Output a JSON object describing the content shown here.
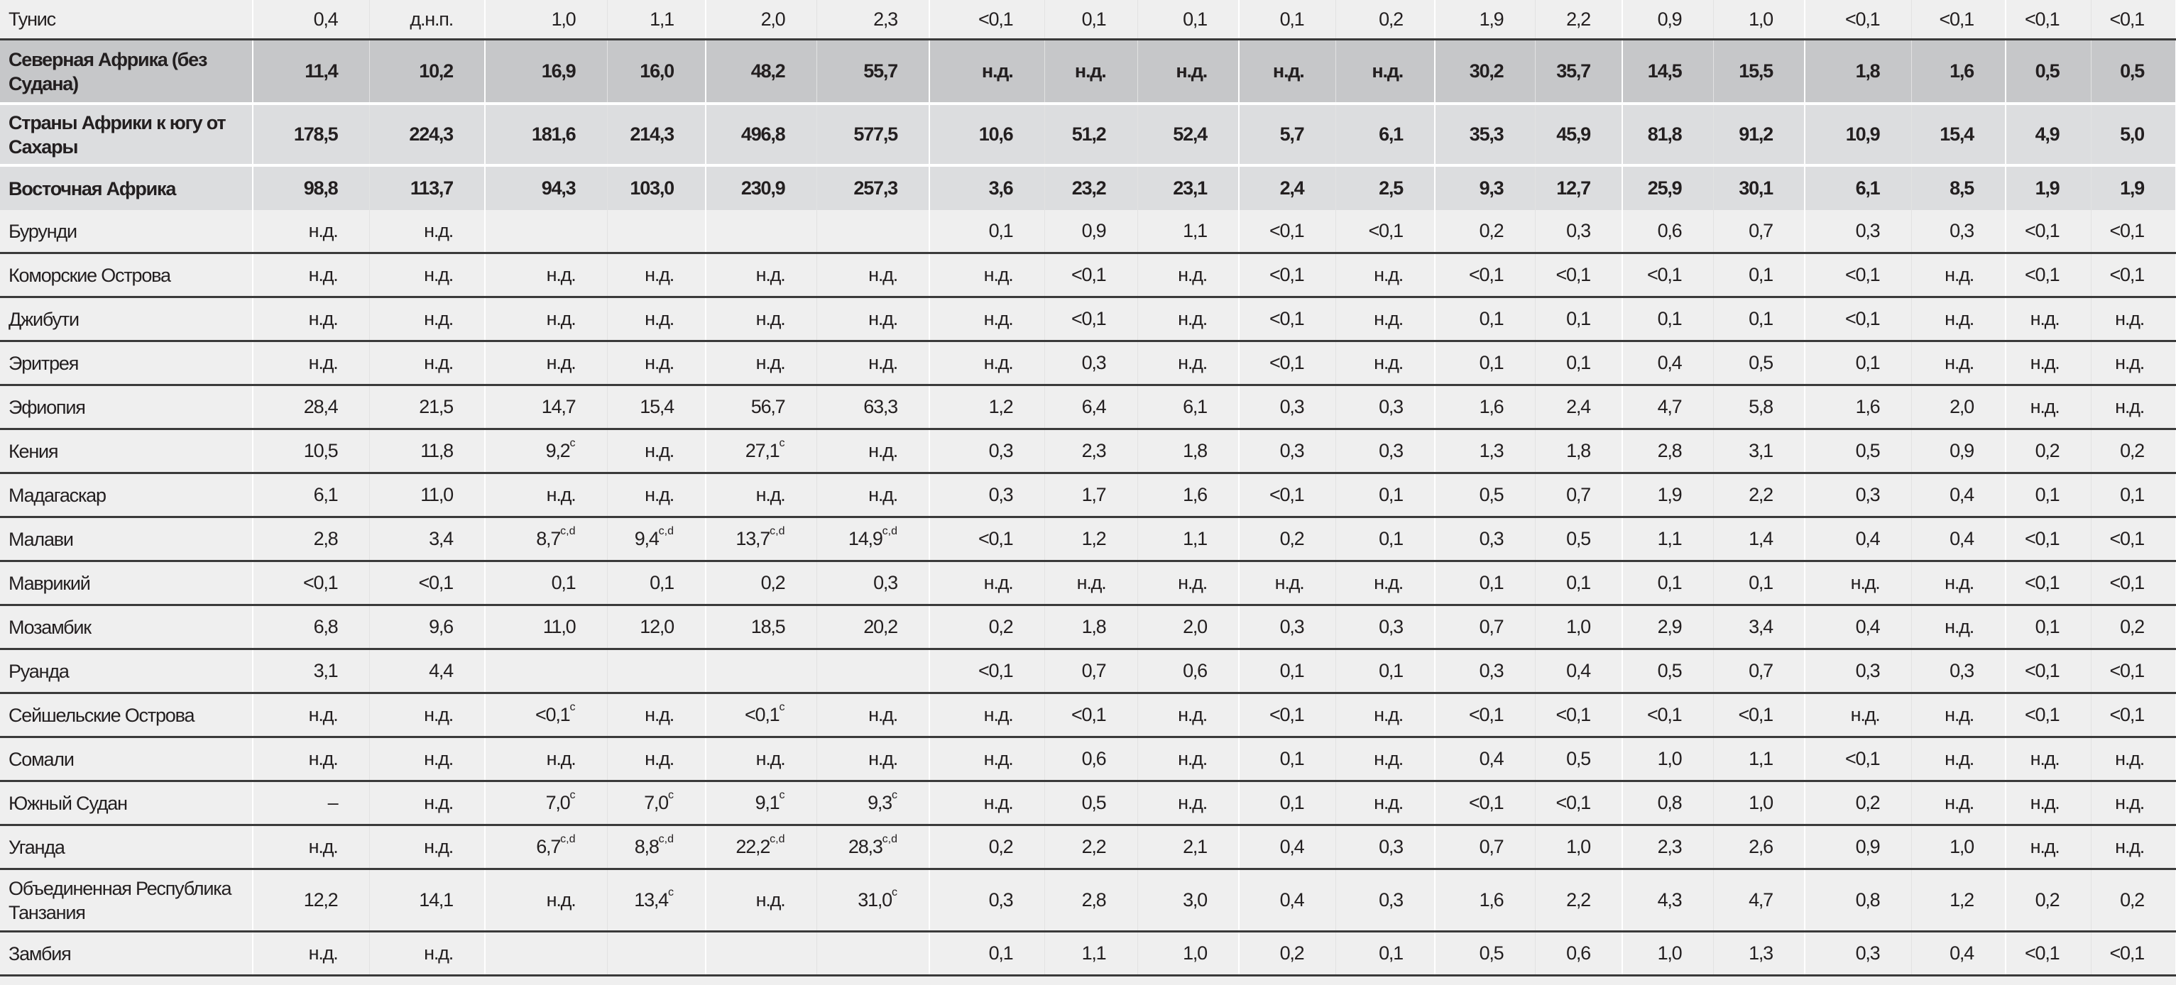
{
  "table": {
    "rows": [
      {
        "label": "Тунис",
        "style": "reg top",
        "cells": [
          "0,4",
          "д.н.п.",
          "1,0",
          "1,1",
          "2,0",
          "2,3",
          "<0,1",
          "0,1",
          "0,1",
          "0,1",
          "0,2",
          "1,9",
          "2,2",
          "0,9",
          "1,0",
          "<0,1",
          "<0,1",
          "<0,1",
          "<0,1"
        ]
      },
      {
        "label": "Северная Африка (без Судана)",
        "style": "agg1",
        "cells": [
          "11,4",
          "10,2",
          "16,9",
          "16,0",
          "48,2",
          "55,7",
          "н.д.",
          "н.д.",
          "н.д.",
          "н.д.",
          "н.д.",
          "30,2",
          "35,7",
          "14,5",
          "15,5",
          "1,8",
          "1,6",
          "0,5",
          "0,5"
        ]
      },
      {
        "label": "Страны Африки к югу от Сахары",
        "style": "agg2",
        "cells": [
          "178,5",
          "224,3",
          "181,6",
          "214,3",
          "496,8",
          "577,5",
          "10,6",
          "51,2",
          "52,4",
          "5,7",
          "6,1",
          "35,3",
          "45,9",
          "81,8",
          "91,2",
          "10,9",
          "15,4",
          "4,9",
          "5,0"
        ]
      },
      {
        "label": "Восточная Африка",
        "style": "agg3",
        "cells": [
          "98,8",
          "113,7",
          "94,3",
          "103,0",
          "230,9",
          "257,3",
          "3,6",
          "23,2",
          "23,1",
          "2,4",
          "2,5",
          "9,3",
          "12,7",
          "25,9",
          "30,1",
          "6,1",
          "8,5",
          "1,9",
          "1,9"
        ]
      },
      {
        "label": "Бурунди",
        "style": "reg",
        "cells": [
          "н.д.",
          "н.д.",
          "",
          "",
          "",
          "",
          "0,1",
          "0,9",
          "1,1",
          "<0,1",
          "<0,1",
          "0,2",
          "0,3",
          "0,6",
          "0,7",
          "0,3",
          "0,3",
          "<0,1",
          "<0,1"
        ]
      },
      {
        "label": "Коморские Острова",
        "style": "reg",
        "cells": [
          "н.д.",
          "н.д.",
          "н.д.",
          "н.д.",
          "н.д.",
          "н.д.",
          "н.д.",
          "<0,1",
          "н.д.",
          "<0,1",
          "н.д.",
          "<0,1",
          "<0,1",
          "<0,1",
          "0,1",
          "<0,1",
          "н.д.",
          "<0,1",
          "<0,1"
        ]
      },
      {
        "label": "Джибути",
        "style": "reg",
        "cells": [
          "н.д.",
          "н.д.",
          "н.д.",
          "н.д.",
          "н.д.",
          "н.д.",
          "н.д.",
          "<0,1",
          "н.д.",
          "<0,1",
          "н.д.",
          "0,1",
          "0,1",
          "0,1",
          "0,1",
          "<0,1",
          "н.д.",
          "н.д.",
          "н.д."
        ]
      },
      {
        "label": "Эритрея",
        "style": "reg",
        "cells": [
          "н.д.",
          "н.д.",
          "н.д.",
          "н.д.",
          "н.д.",
          "н.д.",
          "н.д.",
          "0,3",
          "н.д.",
          "<0,1",
          "н.д.",
          "0,1",
          "0,1",
          "0,4",
          "0,5",
          "0,1",
          "н.д.",
          "н.д.",
          "н.д."
        ]
      },
      {
        "label": "Эфиопия",
        "style": "reg",
        "cells": [
          "28,4",
          "21,5",
          "14,7",
          "15,4",
          "56,7",
          "63,3",
          "1,2",
          "6,4",
          "6,1",
          "0,3",
          "0,3",
          "1,6",
          "2,4",
          "4,7",
          "5,8",
          "1,6",
          "2,0",
          "н.д.",
          "н.д."
        ]
      },
      {
        "label": "Кения",
        "style": "reg",
        "cells": [
          "10,5",
          "11,8",
          "9,2^c",
          "н.д.",
          "27,1^c",
          "н.д.",
          "0,3",
          "2,3",
          "1,8",
          "0,3",
          "0,3",
          "1,3",
          "1,8",
          "2,8",
          "3,1",
          "0,5",
          "0,9",
          "0,2",
          "0,2"
        ]
      },
      {
        "label": "Мадагаскар",
        "style": "reg",
        "cells": [
          "6,1",
          "11,0",
          "н.д.",
          "н.д.",
          "н.д.",
          "н.д.",
          "0,3",
          "1,7",
          "1,6",
          "<0,1",
          "0,1",
          "0,5",
          "0,7",
          "1,9",
          "2,2",
          "0,3",
          "0,4",
          "0,1",
          "0,1"
        ]
      },
      {
        "label": "Малави",
        "style": "reg",
        "cells": [
          "2,8",
          "3,4",
          "8,7^c,d",
          "9,4^c,d",
          "13,7^c,d",
          "14,9^c,d",
          "<0,1",
          "1,2",
          "1,1",
          "0,2",
          "0,1",
          "0,3",
          "0,5",
          "1,1",
          "1,4",
          "0,4",
          "0,4",
          "<0,1",
          "<0,1"
        ]
      },
      {
        "label": "Маврикий",
        "style": "reg",
        "cells": [
          "<0,1",
          "<0,1",
          "0,1",
          "0,1",
          "0,2",
          "0,3",
          "н.д.",
          "н.д.",
          "н.д.",
          "н.д.",
          "н.д.",
          "0,1",
          "0,1",
          "0,1",
          "0,1",
          "н.д.",
          "н.д.",
          "<0,1",
          "<0,1"
        ]
      },
      {
        "label": "Мозамбик",
        "style": "reg",
        "cells": [
          "6,8",
          "9,6",
          "11,0",
          "12,0",
          "18,5",
          "20,2",
          "0,2",
          "1,8",
          "2,0",
          "0,3",
          "0,3",
          "0,7",
          "1,0",
          "2,9",
          "3,4",
          "0,4",
          "н.д.",
          "0,1",
          "0,2"
        ]
      },
      {
        "label": "Руанда",
        "style": "reg",
        "cells": [
          "3,1",
          "4,4",
          "",
          "",
          "",
          "",
          "<0,1",
          "0,7",
          "0,6",
          "0,1",
          "0,1",
          "0,3",
          "0,4",
          "0,5",
          "0,7",
          "0,3",
          "0,3",
          "<0,1",
          "<0,1"
        ]
      },
      {
        "label": "Сейшельские Острова",
        "style": "reg",
        "cells": [
          "н.д.",
          "н.д.",
          "<0,1^c",
          "н.д.",
          "<0,1^c",
          "н.д.",
          "н.д.",
          "<0,1",
          "н.д.",
          "<0,1",
          "н.д.",
          "<0,1",
          "<0,1",
          "<0,1",
          "<0,1",
          "н.д.",
          "н.д.",
          "<0,1",
          "<0,1"
        ]
      },
      {
        "label": "Сомали",
        "style": "reg",
        "cells": [
          "н.д.",
          "н.д.",
          "н.д.",
          "н.д.",
          "н.д.",
          "н.д.",
          "н.д.",
          "0,6",
          "н.д.",
          "0,1",
          "н.д.",
          "0,4",
          "0,5",
          "1,0",
          "1,1",
          "<0,1",
          "н.д.",
          "н.д.",
          "н.д."
        ]
      },
      {
        "label": "Южный Судан",
        "style": "reg",
        "cells": [
          "–",
          "н.д.",
          "7,0^c",
          "7,0^c",
          "9,1^c",
          "9,3^c",
          "н.д.",
          "0,5",
          "н.д.",
          "0,1",
          "н.д.",
          "<0,1",
          "<0,1",
          "0,8",
          "1,0",
          "0,2",
          "н.д.",
          "н.д.",
          "н.д."
        ]
      },
      {
        "label": "Уганда",
        "style": "reg",
        "cells": [
          "н.д.",
          "н.д.",
          "6,7^c,d",
          "8,8^c,d",
          "22,2^c,d",
          "28,3^c,d",
          "0,2",
          "2,2",
          "2,1",
          "0,4",
          "0,3",
          "0,7",
          "1,0",
          "2,3",
          "2,6",
          "0,9",
          "1,0",
          "н.д.",
          "н.д."
        ]
      },
      {
        "label": "Объединенная Республика Танзания",
        "style": "reg tall",
        "cells": [
          "12,2",
          "14,1",
          "н.д.",
          "13,4^c",
          "н.д.",
          "31,0^c",
          "0,3",
          "2,8",
          "3,0",
          "0,4",
          "0,3",
          "1,6",
          "2,2",
          "4,3",
          "4,7",
          "0,8",
          "1,2",
          "0,2",
          "0,2"
        ]
      },
      {
        "label": "Замбия",
        "style": "reg",
        "cells": [
          "н.д.",
          "н.д.",
          "",
          "",
          "",
          "",
          "0,1",
          "1,1",
          "1,0",
          "0,2",
          "0,1",
          "0,5",
          "0,6",
          "1,0",
          "1,3",
          "0,3",
          "0,4",
          "<0,1",
          "<0,1"
        ]
      }
    ]
  }
}
